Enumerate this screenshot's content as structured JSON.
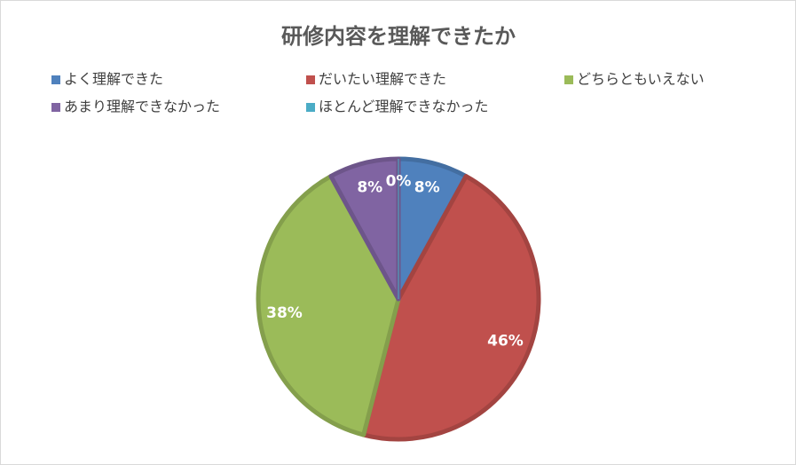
{
  "chart_data": {
    "type": "pie",
    "title": "研修内容を理解できたか",
    "categories": [
      "よく理解できた",
      "だいたい理解できた",
      "どちらともいえない",
      "あまり理解できなかった",
      "ほとんど理解できなかった"
    ],
    "values": [
      8,
      46,
      38,
      8,
      0
    ],
    "value_labels": [
      "8%",
      "46%",
      "38%",
      "8%",
      "0%"
    ],
    "colors": [
      "#4f81bd",
      "#c0504d",
      "#9bbb59",
      "#8064a2",
      "#4bacc6"
    ],
    "legend_position": "top"
  }
}
